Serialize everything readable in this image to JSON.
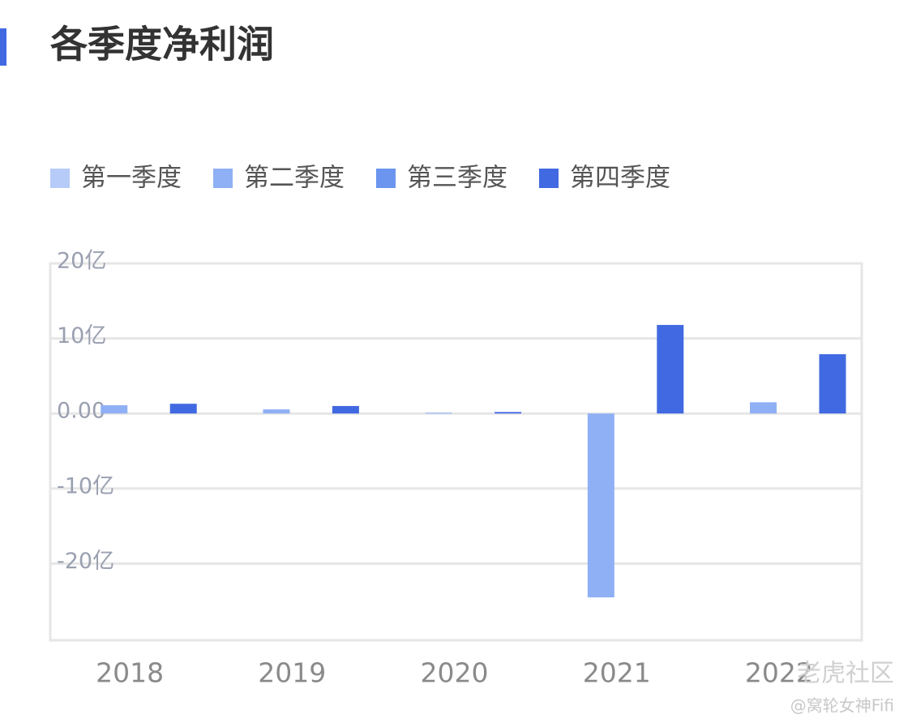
{
  "chart_data": {
    "type": "bar",
    "title": "各季度净利润",
    "categories": [
      "2018",
      "2019",
      "2020",
      "2021",
      "2022"
    ],
    "series": [
      {
        "name": "第一季度",
        "color": "#b6cbf8",
        "values": [
          null,
          null,
          null,
          null,
          null
        ]
      },
      {
        "name": "第二季度",
        "color": "#8fb0f5",
        "values": [
          1.1,
          0.55,
          0.1,
          -24.5,
          1.5
        ]
      },
      {
        "name": "第三季度",
        "color": "#6b95ef",
        "values": [
          null,
          null,
          null,
          null,
          null
        ]
      },
      {
        "name": "第四季度",
        "color": "#4169e1",
        "values": [
          1.3,
          1.0,
          0.2,
          11.8,
          7.9
        ]
      }
    ],
    "ylim": [
      -30,
      20
    ],
    "yticks": [
      {
        "value": -20,
        "label": "-20亿"
      },
      {
        "value": -10,
        "label": "-10亿"
      },
      {
        "value": 0,
        "label": "0.00"
      },
      {
        "value": 10,
        "label": "10亿"
      },
      {
        "value": 20,
        "label": "20亿"
      }
    ],
    "grid": true,
    "legend": "top-left",
    "annotations": [
      "老虎社区",
      "@窝轮女神Fifi"
    ]
  }
}
